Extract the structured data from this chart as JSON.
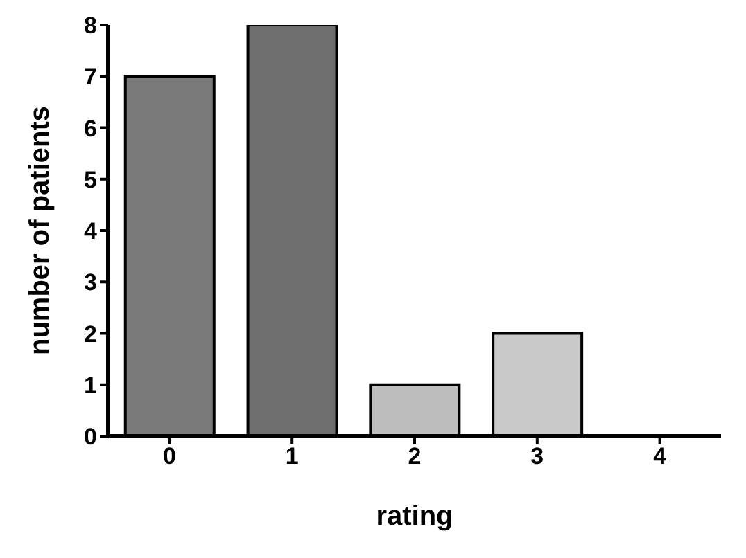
{
  "chart_data": {
    "type": "bar",
    "xlabel": "rating",
    "ylabel": "number of patients",
    "categories": [
      "0",
      "1",
      "2",
      "3",
      "4"
    ],
    "values": [
      7,
      8,
      1,
      2,
      0
    ],
    "colors": [
      "#7a7a7a",
      "#6e6e6e",
      "#bdbdbd",
      "#c8c8c8",
      "#bdbdbd"
    ],
    "ylim": [
      0,
      8
    ],
    "yticks": [
      0,
      1,
      2,
      3,
      4,
      5,
      6,
      7,
      8
    ]
  }
}
